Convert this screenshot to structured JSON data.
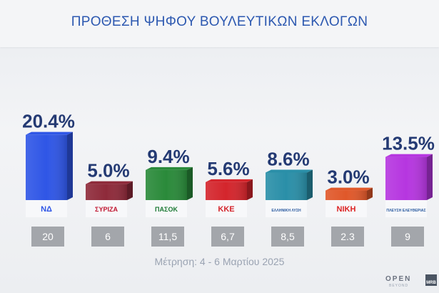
{
  "title": "ΠΡΟΘΕΣΗ ΨΗΦΟΥ ΒΟΥΛΕΥΤΙΚΩΝ ΕΚΛΟΓΩΝ",
  "measurement_note": "Μέτρηση: 4 - 6 Μαρτίου 2025",
  "branding": {
    "channel": "OPEN",
    "channel_sub": "BEYOND",
    "pollster": "MRB"
  },
  "chart_data": {
    "type": "bar",
    "title": "ΠΡΟΘΕΣΗ ΨΗΦΟΥ ΒΟΥΛΕΥΤΙΚΩΝ ΕΚΛΟΓΩΝ",
    "categories": [
      "ΝΔ",
      "ΣΥΡΙΖΑ",
      "ΠΑΣΟΚ",
      "ΚΚΕ",
      "ΕΛΛΗΝΙΚΗ ΛΥΣΗ",
      "ΝΙΚΗ",
      "ΠΛΕΥΣΗ ΕΛΕΥΘΕΡΙΑΣ"
    ],
    "values": [
      20.4,
      5.0,
      9.4,
      5.6,
      8.6,
      3.0,
      13.5
    ],
    "value_labels": [
      "20.4%",
      "5.0%",
      "9.4%",
      "5.6%",
      "8.6%",
      "3.0%",
      "13.5%"
    ],
    "previous_values": [
      "20",
      "6",
      "11,5",
      "6,7",
      "8,5",
      "2.3",
      "9"
    ],
    "colors": [
      "#2f56e6",
      "#8e2a3a",
      "#2a8a3a",
      "#d4252c",
      "#2a8fa8",
      "#e0582a",
      "#b636e0"
    ],
    "logos": [
      {
        "text": "ΝΔ",
        "color": "#2f56e6"
      },
      {
        "text": "ΣΥΡΙΖΑ",
        "color": "#c0152f"
      },
      {
        "text": "ΠΑΣΟΚ",
        "color": "#1d7a35"
      },
      {
        "text": "ΚΚΕ",
        "color": "#d4252c"
      },
      {
        "text": "ΕΛΛΗΝΙΚΗ ΛΥΣΗ",
        "color": "#2a5aa0"
      },
      {
        "text": "ΝΙΚΗ",
        "color": "#d22"
      },
      {
        "text": "ΠΛΕΥΣΗ ΕΛΕΥΘΕΡΙΑΣ",
        "color": "#2a5aa0"
      }
    ],
    "ylim": [
      0,
      21
    ],
    "grid": false,
    "legend": "none"
  }
}
